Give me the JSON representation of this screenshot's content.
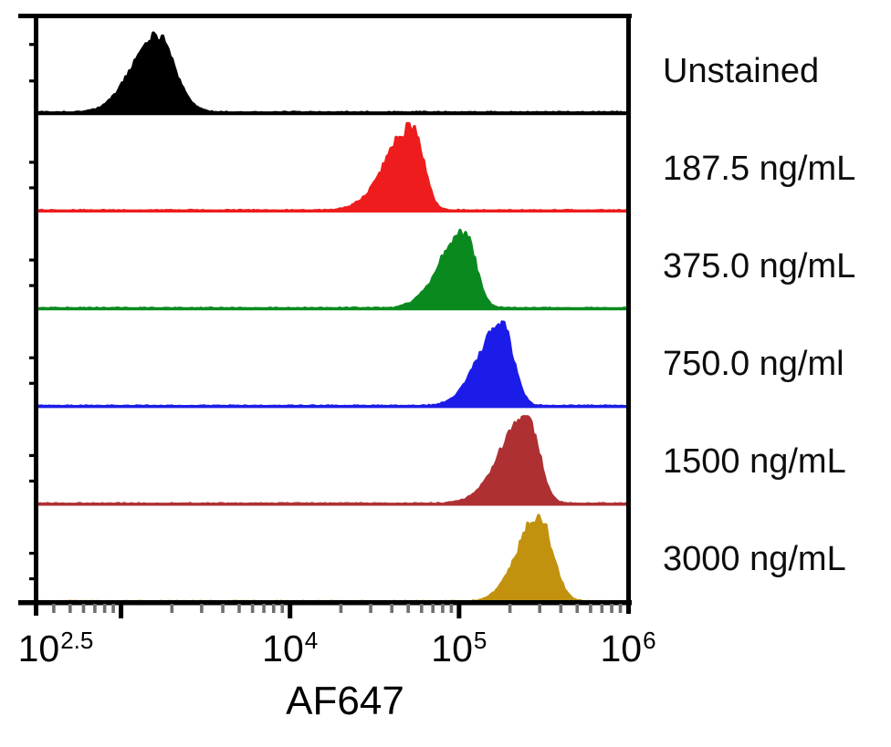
{
  "chart_data": {
    "type": "area",
    "subtype": "flow-cytometry-stacked-histograms",
    "title": "",
    "xlabel": "AF647",
    "ylabel": "",
    "x_scale": "log10",
    "x_range_log10": [
      2.5,
      6.0
    ],
    "x_tick_labels": [
      {
        "base": "10",
        "exp": "2.5",
        "log10": 2.5
      },
      {
        "base": "10",
        "exp": "4",
        "log10": 4
      },
      {
        "base": "10",
        "exp": "5",
        "log10": 5
      },
      {
        "base": "10",
        "exp": "6",
        "log10": 6
      }
    ],
    "unlabeled_major_ticks_log10": [
      3
    ],
    "minor_ticks_log10_pattern": "2-9 per decade",
    "legend_position": "right-of-plot",
    "grid": false,
    "series": [
      {
        "label": "Unstained",
        "color": "#000000",
        "peak_log10": 3.21,
        "peak_value_est": 1600,
        "sigma_left_dec": 0.145,
        "sigma_right_dec": 0.105,
        "height_frac": 0.77
      },
      {
        "label": "187.5 ng/mL",
        "color": "#ee1c1c",
        "peak_log10": 4.72,
        "peak_value_est": 52000,
        "sigma_left_dec": 0.15,
        "sigma_right_dec": 0.066,
        "height_frac": 0.85
      },
      {
        "label": "375.0 ng/mL",
        "color": "#0a8a1e",
        "peak_log10": 5.03,
        "peak_value_est": 107000,
        "sigma_left_dec": 0.14,
        "sigma_right_dec": 0.066,
        "height_frac": 0.78
      },
      {
        "label": "750.0 ng/ml",
        "color": "#1c1ce8",
        "peak_log10": 5.25,
        "peak_value_est": 178000,
        "sigma_left_dec": 0.135,
        "sigma_right_dec": 0.068,
        "height_frac": 0.84
      },
      {
        "label": "1500 ng/mL",
        "color": "#ae3032",
        "peak_log10": 5.4,
        "peak_value_est": 250000,
        "sigma_left_dec": 0.15,
        "sigma_right_dec": 0.07,
        "height_frac": 0.9
      },
      {
        "label": "3000 ng/mL",
        "color": "#c2920e",
        "peak_log10": 5.47,
        "peak_value_est": 295000,
        "sigma_left_dec": 0.125,
        "sigma_right_dec": 0.08,
        "height_frac": 0.85
      }
    ],
    "axis_color": "#000000",
    "minor_tick_color": "#707070"
  }
}
